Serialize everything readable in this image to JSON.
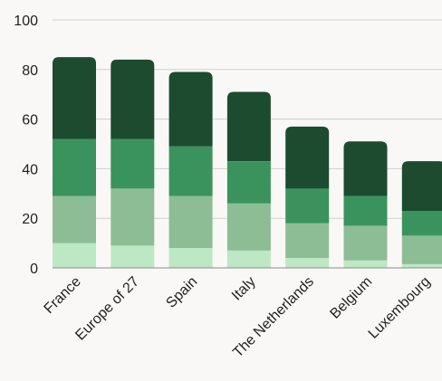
{
  "chart_data": {
    "type": "bar",
    "stacked": true,
    "categories": [
      "France",
      "Europe of 27",
      "Spain",
      "Italy",
      "The Netherlands",
      "Belgium",
      "Luxembourg"
    ],
    "series": [
      {
        "values": [
          10,
          9,
          8,
          7,
          4,
          3,
          1.5
        ],
        "color": "#bde8c4"
      },
      {
        "values": [
          19,
          23,
          21,
          19,
          14,
          14,
          11.5
        ],
        "color": "#8dbd94"
      },
      {
        "values": [
          23,
          20,
          20,
          17,
          14,
          12,
          10
        ],
        "color": "#3a935d"
      },
      {
        "values": [
          33,
          32,
          30,
          28,
          25,
          22,
          20
        ],
        "color": "#1c4b2f"
      }
    ],
    "ylim": [
      0,
      100
    ],
    "yticks": [
      "0",
      "20",
      "40",
      "60",
      "80",
      "100"
    ],
    "grid": true,
    "legend": "none",
    "title": "",
    "xlabel": "",
    "ylabel": ""
  }
}
